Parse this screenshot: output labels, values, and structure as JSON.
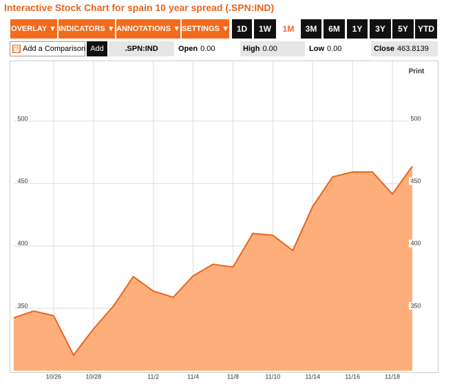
{
  "title": "Interactive Stock Chart for spain 10 year spread (.SPN:IND)",
  "toolbar": {
    "menus": [
      "OVERLAY ▼",
      "INDICATORS ▼",
      "ANNOTATIONS ▼",
      "SETTINGS ▼"
    ],
    "ranges": [
      "1D",
      "1W",
      "1M",
      "3M",
      "6M",
      "1Y",
      "3Y",
      "5Y",
      "YTD"
    ],
    "selected": "1M"
  },
  "comparison": {
    "help": "[?]",
    "placeholder": "Add a Comparison",
    "button": "Add"
  },
  "quote": {
    "symbol": ".SPN:IND",
    "fields": [
      {
        "label": "Open",
        "value": "0.00"
      },
      {
        "label": "High",
        "value": "0.00"
      },
      {
        "label": "Low",
        "value": "0.00"
      },
      {
        "label": "Close",
        "value": "463.8139"
      }
    ]
  },
  "print": "Print",
  "chart_data": {
    "type": "area",
    "categories": [
      null,
      null,
      "10/26",
      null,
      "10/28",
      null,
      null,
      "11/2",
      null,
      "11/4",
      null,
      "11/8",
      null,
      "11/10",
      null,
      "11/14",
      null,
      "11/16",
      null,
      "11/18",
      null
    ],
    "values": [
      342.3,
      347.8,
      344,
      312.5,
      333.5,
      351.7,
      375.4,
      363.8,
      358.8,
      376,
      385.3,
      383,
      410,
      408.5,
      396.3,
      431.6,
      455.3,
      459.2,
      459.2,
      441.5,
      463.8
    ],
    "ylim": [
      300,
      545
    ],
    "yticks": [
      350,
      400,
      450,
      500
    ],
    "grid": true,
    "color": "#e8641a",
    "fill": "#fdae7b"
  }
}
